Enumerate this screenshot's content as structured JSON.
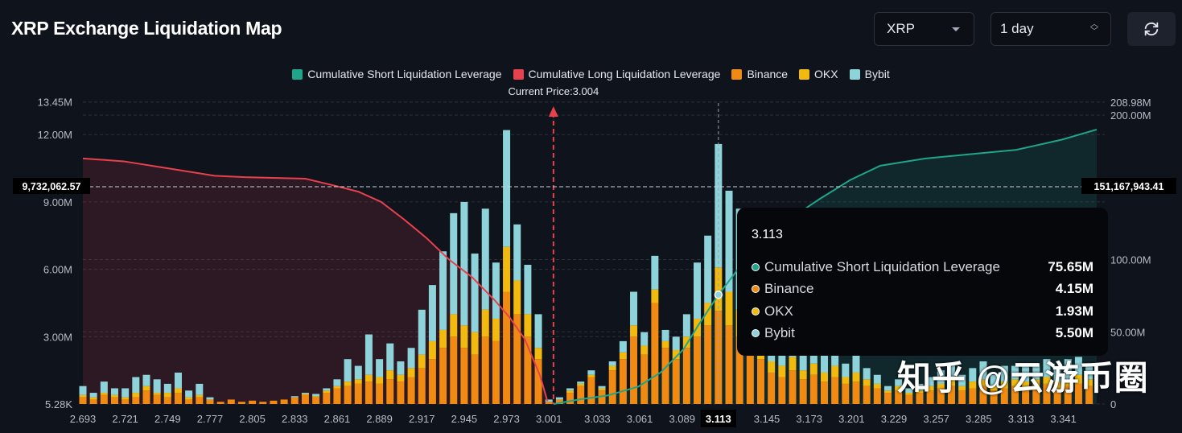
{
  "header": {
    "title": "XRP Exchange Liquidation Map",
    "coin_select": "XRP",
    "time_select": "1 day",
    "refresh_icon": "refresh-icon"
  },
  "colors": {
    "short": "#1fa58a",
    "long": "#e8414e",
    "binance": "#f08a12",
    "okx": "#f2b90f",
    "bybit": "#8fd3da",
    "background": "#0f131c"
  },
  "watermark": "知乎 @云游币圈",
  "chart_data": {
    "type": "bar",
    "title": "",
    "legend": [
      {
        "name": "Cumulative Short Liquidation Leverage",
        "color": "#1fa58a"
      },
      {
        "name": "Cumulative Long Liquidation Leverage",
        "color": "#e8414e"
      },
      {
        "name": "Binance",
        "color": "#f08a12"
      },
      {
        "name": "OKX",
        "color": "#f2b90f"
      },
      {
        "name": "Bybit",
        "color": "#8fd3da"
      }
    ],
    "legend_position": "top-center",
    "current_price_label": "Current Price:3.004",
    "current_price": 3.004,
    "x_ticks": [
      "2.693",
      "2.721",
      "2.749",
      "2.777",
      "2.805",
      "2.833",
      "2.861",
      "2.889",
      "2.917",
      "2.945",
      "2.973",
      "3.001",
      "3.033",
      "3.061",
      "3.089",
      "3.113",
      "3.145",
      "3.173",
      "3.201",
      "3.229",
      "3.257",
      "3.285",
      "3.313",
      "3.341"
    ],
    "x_range": [
      2.693,
      3.363
    ],
    "y_left": {
      "ticks": [
        "5.28K",
        "3.00M",
        "6.00M",
        "9.00M",
        "12.00M",
        "13.45M"
      ],
      "tick_values": [
        0.00528,
        3,
        6,
        9,
        12,
        13.45
      ],
      "range": [
        0,
        13.45
      ],
      "unit": "M"
    },
    "y_right": {
      "ticks": [
        "0",
        "50.00M",
        "100.00M",
        "200.00M",
        "208.98M"
      ],
      "tick_values": [
        0,
        50,
        100,
        200,
        208.98
      ],
      "range": [
        0,
        208.98
      ],
      "unit": "M"
    },
    "crosshair": {
      "x": "3.113",
      "left_value": "9,732,062.57",
      "right_value": "151,167,943.41"
    },
    "bars": {
      "x_start": 2.693,
      "x_step": 0.007,
      "series_order": [
        "Binance",
        "OKX",
        "Bybit"
      ],
      "values": [
        [
          0.3,
          0.1,
          0.4
        ],
        [
          0.2,
          0.1,
          0.2
        ],
        [
          0.4,
          0.1,
          0.5
        ],
        [
          0.3,
          0.1,
          0.3
        ],
        [
          0.2,
          0.1,
          0.4
        ],
        [
          0.3,
          0.2,
          0.7
        ],
        [
          0.6,
          0.2,
          0.5
        ],
        [
          0.4,
          0.1,
          0.6
        ],
        [
          0.3,
          0.2,
          0.4
        ],
        [
          0.5,
          0.2,
          0.7
        ],
        [
          0.2,
          0.1,
          0.3
        ],
        [
          0.3,
          0.1,
          0.5
        ],
        [
          0.2,
          0,
          0.1
        ],
        [
          0.1,
          0,
          0
        ],
        [
          0.2,
          0,
          0
        ],
        [
          0.1,
          0,
          0
        ],
        [
          0.15,
          0,
          0
        ],
        [
          0.1,
          0,
          0
        ],
        [
          0.15,
          0,
          0
        ],
        [
          0.2,
          0,
          0
        ],
        [
          0.3,
          0,
          0.05
        ],
        [
          0.4,
          0.05,
          0.05
        ],
        [
          0.3,
          0.05,
          0.1
        ],
        [
          0.5,
          0.1,
          0.1
        ],
        [
          0.7,
          0.1,
          0.3
        ],
        [
          0.8,
          0.2,
          1.0
        ],
        [
          0.9,
          0.2,
          0.6
        ],
        [
          1.0,
          0.3,
          1.8
        ],
        [
          0.9,
          0.3,
          0.8
        ],
        [
          1.1,
          0.4,
          1.2
        ],
        [
          1.0,
          0.3,
          0.6
        ],
        [
          1.2,
          0.4,
          0.9
        ],
        [
          1.6,
          0.6,
          2.0
        ],
        [
          2.0,
          0.8,
          2.5
        ],
        [
          2.5,
          0.8,
          3.5
        ],
        [
          3.0,
          1.0,
          4.5
        ],
        [
          2.5,
          1.0,
          5.5
        ],
        [
          2.2,
          1.0,
          3.5
        ],
        [
          3.0,
          1.2,
          4.5
        ],
        [
          2.8,
          1.0,
          2.5
        ],
        [
          5.0,
          2.0,
          5.2
        ],
        [
          4.0,
          1.5,
          2.5
        ],
        [
          3.0,
          1.0,
          2.2
        ],
        [
          2.0,
          0.5,
          1.5
        ],
        [
          0.1,
          0,
          0.1
        ],
        [
          0.2,
          0,
          0.1
        ],
        [
          0.5,
          0.1,
          0.1
        ],
        [
          0.8,
          0.1,
          0.1
        ],
        [
          1.2,
          0.1,
          0.2
        ],
        [
          0.6,
          0.1,
          0.1
        ],
        [
          1.5,
          0.2,
          0.2
        ],
        [
          2.0,
          0.3,
          0.5
        ],
        [
          3.0,
          0.5,
          1.5
        ],
        [
          2.2,
          0.4,
          0.6
        ],
        [
          4.5,
          0.6,
          1.5
        ],
        [
          2.5,
          0.3,
          0.5
        ],
        [
          2.0,
          0.4,
          0.6
        ],
        [
          2.5,
          0.5,
          1.0
        ],
        [
          3.0,
          0.8,
          2.5
        ],
        [
          3.5,
          1.0,
          3.0
        ],
        [
          4.15,
          1.93,
          5.5
        ],
        [
          3.5,
          1.5,
          4.5
        ],
        [
          3.0,
          1.2,
          4.5
        ],
        [
          2.5,
          1.0,
          3.0
        ],
        [
          2.0,
          0.8,
          2.0
        ],
        [
          1.4,
          0.5,
          1.0
        ],
        [
          1.2,
          0.5,
          0.8
        ],
        [
          1.5,
          0.6,
          1.2
        ],
        [
          1.1,
          0.4,
          0.7
        ],
        [
          1.3,
          0.5,
          1.0
        ],
        [
          1.0,
          0.4,
          0.8
        ],
        [
          1.2,
          0.5,
          1.1
        ],
        [
          0.9,
          0.3,
          0.6
        ],
        [
          1.0,
          0.4,
          0.9
        ],
        [
          0.8,
          0.3,
          0.5
        ],
        [
          0.7,
          0.2,
          0.4
        ],
        [
          0.5,
          0.1,
          0.2
        ],
        [
          0.6,
          0.2,
          0.3
        ],
        [
          0.4,
          0.1,
          0.2
        ],
        [
          0.5,
          0.1,
          0.3
        ],
        [
          0.6,
          0.2,
          0.4
        ],
        [
          0.7,
          0.2,
          0.6
        ],
        [
          0.8,
          0.3,
          0.7
        ],
        [
          0.6,
          0.2,
          0.5
        ],
        [
          0.7,
          0.3,
          0.6
        ],
        [
          0.8,
          0.3,
          0.8
        ],
        [
          0.6,
          0.2,
          0.5
        ],
        [
          0.7,
          0.3,
          0.7
        ],
        [
          0.8,
          0.3,
          0.6
        ],
        [
          0.7,
          0.3,
          0.8
        ],
        [
          0.8,
          0.3,
          0.7
        ],
        [
          0.9,
          0.3,
          0.8
        ],
        [
          0.7,
          0.3,
          0.6
        ],
        [
          0.8,
          0.3,
          0.9
        ],
        [
          0.9,
          0.4,
          0.8
        ],
        [
          0.8,
          0.3,
          0.7
        ]
      ]
    },
    "long_cumulative": {
      "axis": "right",
      "x": [
        2.693,
        2.72,
        2.75,
        2.78,
        2.8,
        2.84,
        2.86,
        2.875,
        2.89,
        2.905,
        2.92,
        2.935,
        2.95,
        2.965,
        2.975,
        2.985,
        2.995,
        3.0
      ],
      "y": [
        170,
        168,
        163,
        158,
        157,
        156,
        151,
        147,
        140,
        128,
        115,
        100,
        88,
        72,
        60,
        45,
        20,
        2
      ]
    },
    "short_cumulative": {
      "axis": "right",
      "x": [
        3.004,
        3.02,
        3.04,
        3.06,
        3.075,
        3.09,
        3.1,
        3.113,
        3.125,
        3.14,
        3.16,
        3.18,
        3.2,
        3.22,
        3.25,
        3.28,
        3.31,
        3.34,
        3.363
      ],
      "y": [
        0,
        3,
        6,
        12,
        22,
        38,
        55,
        75.65,
        92,
        110,
        128,
        142,
        155,
        165,
        170,
        173,
        176,
        183,
        190
      ]
    },
    "tooltip": {
      "title": "3.113",
      "rows": [
        {
          "label": "Cumulative Short Liquidation Leverage",
          "value": "75.65M",
          "color": "#1fa58a"
        },
        {
          "label": "Binance",
          "value": "4.15M",
          "color": "#f08a12"
        },
        {
          "label": "OKX",
          "value": "1.93M",
          "color": "#f2b90f"
        },
        {
          "label": "Bybit",
          "value": "5.50M",
          "color": "#8fd3da"
        }
      ]
    }
  }
}
